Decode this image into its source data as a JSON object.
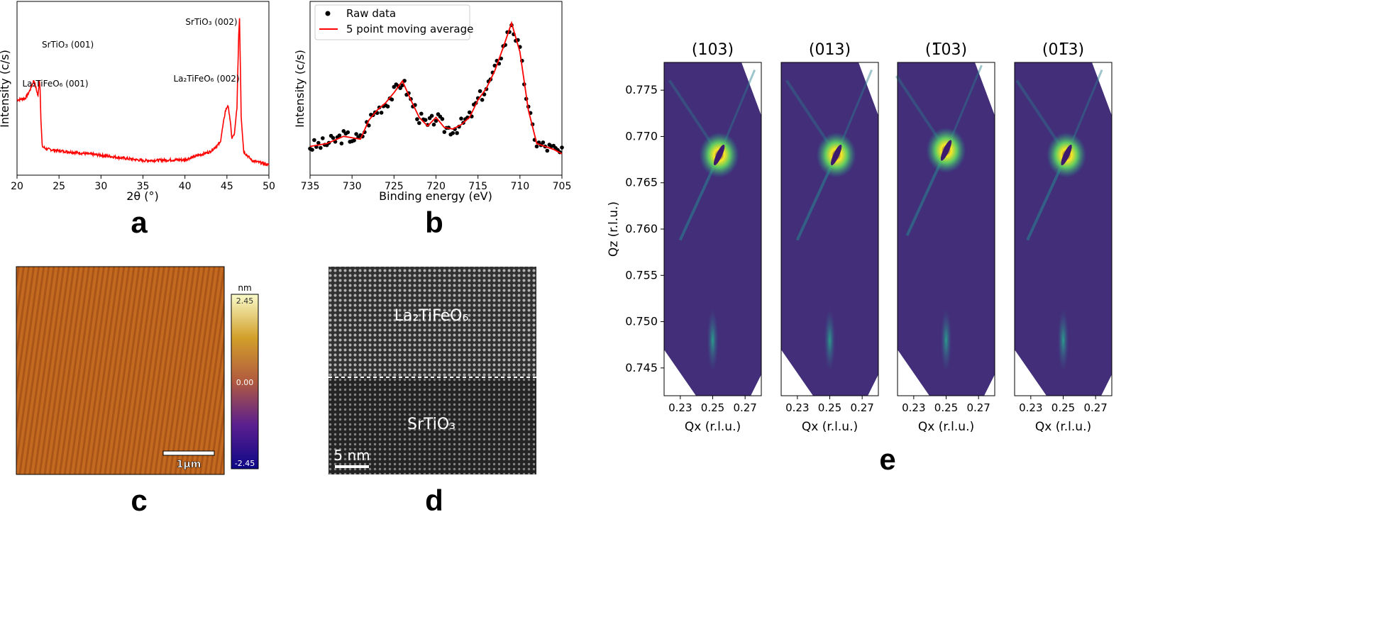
{
  "panels": {
    "a": {
      "letter": "a"
    },
    "b": {
      "letter": "b"
    },
    "c": {
      "letter": "c"
    },
    "d": {
      "letter": "d"
    },
    "e": {
      "letter": "e"
    }
  },
  "chart_data": [
    {
      "id": "a",
      "type": "line",
      "title": "",
      "xlabel": "2θ (°)",
      "ylabel": "Intensity (c/s)",
      "xlim": [
        20,
        50
      ],
      "x_ticks": [
        20,
        25,
        30,
        35,
        40,
        45,
        50
      ],
      "yscale": "log",
      "y_ticks_labeled": false,
      "line_color": "#ff0000",
      "series": [
        {
          "name": "XRD",
          "x": [
            20,
            21,
            21.6,
            22.0,
            22.3,
            22.5,
            22.65,
            22.75,
            22.85,
            23.0,
            23.5,
            25,
            30,
            35,
            40,
            43,
            44.2,
            44.8,
            45.1,
            45.3,
            45.6,
            45.9,
            46.2,
            46.4,
            46.5,
            46.7,
            47,
            48,
            50
          ],
          "y": [
            0.78,
            0.8,
            0.9,
            1.0,
            0.9,
            0.82,
            1.0,
            0.92,
            0.55,
            0.26,
            0.23,
            0.21,
            0.16,
            0.1,
            0.11,
            0.2,
            0.3,
            0.65,
            0.72,
            0.62,
            0.35,
            0.4,
            0.7,
            1.5,
            1.7,
            0.6,
            0.2,
            0.1,
            0.05
          ]
        }
      ],
      "annotations": [
        {
          "text": "SrTiO₃ (001)",
          "x": 22.9
        },
        {
          "text": "La₂TiFeO₆ (001)",
          "x": 22.0
        },
        {
          "text": "SrTiO₃ (002)",
          "x": 46.0
        },
        {
          "text": "La₂TiFeO₆ (002)",
          "x": 44.9
        }
      ]
    },
    {
      "id": "b",
      "type": "scatter+line",
      "title": "",
      "xlabel": "Binding energy (eV)",
      "ylabel": "Intensity (c/s)",
      "xlim": [
        735,
        705
      ],
      "x_ticks": [
        735,
        730,
        725,
        720,
        715,
        710,
        705
      ],
      "y_ticks_labeled": false,
      "legend": [
        {
          "name": "Raw data",
          "color": "#000000",
          "marker": "dot"
        },
        {
          "name": "5 point moving average",
          "color": "#ff0000",
          "marker": "line"
        }
      ],
      "series": [
        {
          "name": "5 point moving average",
          "x": [
            735,
            733,
            731,
            729,
            728,
            727,
            726,
            725,
            724,
            723,
            722,
            721,
            720,
            719,
            718,
            717,
            716,
            715,
            714,
            713,
            712,
            711,
            710,
            709,
            708,
            707,
            706,
            705
          ],
          "y": [
            0.1,
            0.12,
            0.17,
            0.15,
            0.28,
            0.35,
            0.4,
            0.47,
            0.55,
            0.42,
            0.3,
            0.24,
            0.3,
            0.23,
            0.22,
            0.25,
            0.3,
            0.42,
            0.5,
            0.62,
            0.78,
            0.95,
            0.75,
            0.35,
            0.12,
            0.1,
            0.08,
            0.05
          ]
        }
      ]
    },
    {
      "id": "c",
      "type": "heatmap",
      "title": "",
      "colorbar_unit": "nm",
      "colorbar_ticks": [
        "2.45",
        "0.00",
        "-2.45"
      ],
      "scale_bar": "1μm"
    },
    {
      "id": "d",
      "type": "image",
      "layer_top": "La₂TiFeO₆",
      "layer_bottom": "SrTiO₃",
      "scale_bar": "5 nm"
    },
    {
      "id": "e",
      "type": "heatmap",
      "ylabel": "Qz (r.l.u.)",
      "xlabel": "Qx (r.l.u.)",
      "xlim": [
        0.22,
        0.28
      ],
      "x_ticks": [
        "0.23",
        "0.25",
        "0.27"
      ],
      "ylim": [
        0.742,
        0.778
      ],
      "y_ticks": [
        "0.775",
        "0.770",
        "0.765",
        "0.760",
        "0.755",
        "0.750",
        "0.745"
      ],
      "maps": [
        {
          "title": "(103)",
          "peak_qx": 0.254,
          "peak_qz": 0.768
        },
        {
          "title": "(013)",
          "peak_qx": 0.254,
          "peak_qz": 0.768
        },
        {
          "title": "(1̅03)",
          "peak_qx": 0.25,
          "peak_qz": 0.7685
        },
        {
          "title": "(01̅3)",
          "peak_qx": 0.252,
          "peak_qz": 0.768
        }
      ]
    }
  ]
}
